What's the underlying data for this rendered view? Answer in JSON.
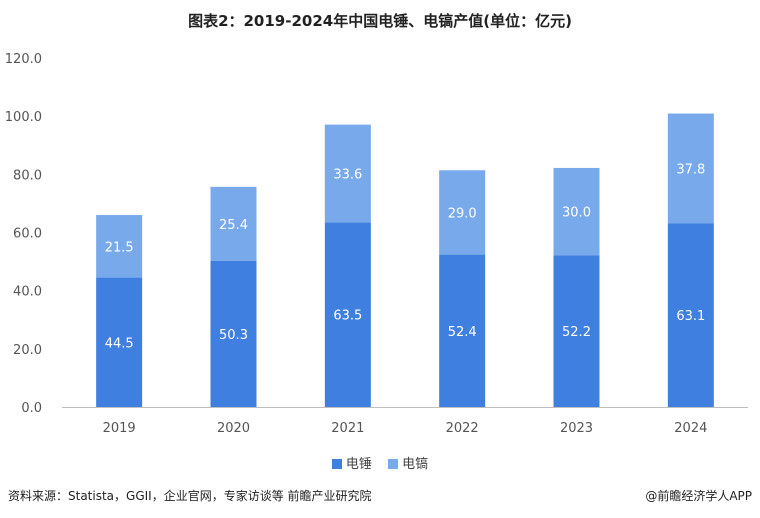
{
  "title": "图表2：2019-2024年中国电锤、电镐产值(单位：亿元)",
  "chart_data": {
    "type": "bar",
    "stacked": true,
    "title": "图表2：2019-2024年中国电锤、电镐产值(单位：亿元)",
    "categories": [
      "2019",
      "2020",
      "2021",
      "2022",
      "2023",
      "2024"
    ],
    "series": [
      {
        "name": "电锤",
        "color": "#3f7fdf",
        "values": [
          44.5,
          50.3,
          63.5,
          52.4,
          52.2,
          63.1
        ]
      },
      {
        "name": "电镐",
        "color": "#78a9eb",
        "values": [
          21.5,
          25.4,
          33.6,
          29.0,
          30.0,
          37.8
        ]
      }
    ],
    "ylim": [
      0,
      120
    ],
    "yticks": [
      "0.0",
      "20.0",
      "40.0",
      "60.0",
      "80.0",
      "100.0",
      "120.0"
    ],
    "grid": false,
    "legend": "bottom"
  },
  "footer": {
    "source": "资料来源：Statista，GGII，企业官网，专家访谈等 前瞻产业研究院",
    "credit": "@前瞻经济学人APP"
  }
}
